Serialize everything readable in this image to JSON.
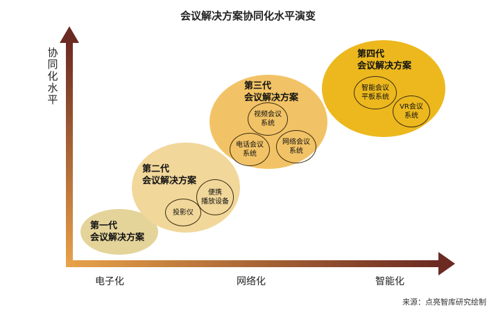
{
  "title": "会议解决方案协同化水平演变",
  "y_axis": {
    "chars": [
      "协",
      "同",
      "化",
      "水",
      "平"
    ]
  },
  "x_axis": {
    "labels": [
      "电子化",
      "网络化",
      "智能化"
    ]
  },
  "generations": [
    {
      "title_lines": [
        "第一代",
        "会议解决方案"
      ],
      "items": []
    },
    {
      "title_lines": [
        "第二代",
        "会议解决方案"
      ],
      "items": [
        {
          "lines": [
            "便携",
            "播放设备"
          ]
        },
        {
          "lines": [
            "投影仪"
          ]
        }
      ]
    },
    {
      "title_lines": [
        "第三代",
        "会议解决方案"
      ],
      "items": [
        {
          "lines": [
            "视频会议",
            "系统"
          ]
        },
        {
          "lines": [
            "电话会议",
            "系统"
          ]
        },
        {
          "lines": [
            "网络会议",
            "系统"
          ]
        }
      ]
    },
    {
      "title_lines": [
        "第四代",
        "会议解决方案"
      ],
      "items": [
        {
          "lines": [
            "智能会议",
            "平板系统"
          ]
        },
        {
          "lines": [
            "VR会议",
            "系统"
          ]
        }
      ]
    }
  ],
  "colors": {
    "gen1": "#e4d49a",
    "gen2": "#f1d79a",
    "gen3": "#f2c366",
    "gen4": "#ecb81e",
    "axis_start": "#e8a24a",
    "axis_end": "#6b2a22"
  },
  "source": "来源：点亮智库研究绘制"
}
